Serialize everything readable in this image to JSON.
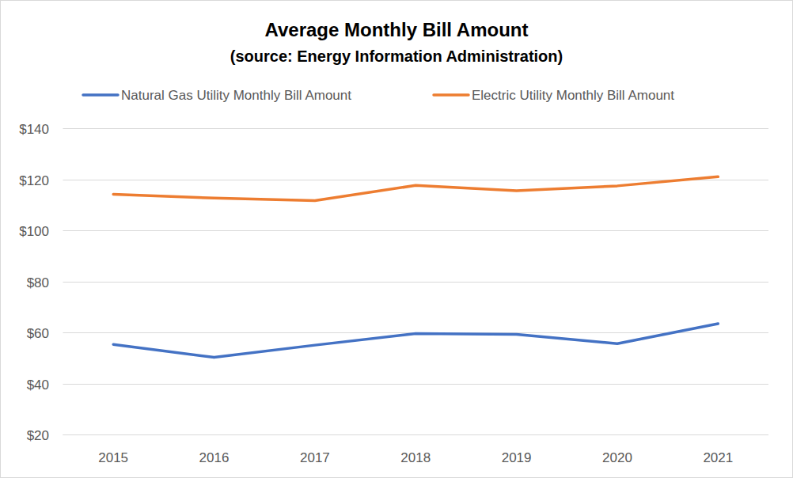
{
  "chart_data": {
    "type": "line",
    "title": "Average Monthly Bill Amount",
    "subtitle": "(source: Energy Information Administration)",
    "categories": [
      "2015",
      "2016",
      "2017",
      "2018",
      "2019",
      "2020",
      "2021"
    ],
    "series": [
      {
        "name": "Natural Gas Utility Monthly Bill Amount",
        "color": "#4472c4",
        "values": [
          55.3,
          50.2,
          55.0,
          59.5,
          59.2,
          55.6,
          63.4
        ]
      },
      {
        "name": "Electric Utility Monthly Bill Amount",
        "color": "#ed7d31",
        "values": [
          114.1,
          112.6,
          111.6,
          117.6,
          115.5,
          117.4,
          121.0
        ]
      }
    ],
    "ylim": [
      20,
      140
    ],
    "yticks": [
      {
        "value": 20,
        "label": "$20"
      },
      {
        "value": 40,
        "label": "$40"
      },
      {
        "value": 60,
        "label": "$60"
      },
      {
        "value": 80,
        "label": "$80"
      },
      {
        "value": 100,
        "label": "$100"
      },
      {
        "value": 120,
        "label": "$120"
      },
      {
        "value": 140,
        "label": "$140"
      }
    ],
    "grid": true,
    "legend": "top"
  }
}
